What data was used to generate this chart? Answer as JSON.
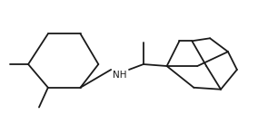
{
  "background": "#ffffff",
  "line_color": "#1a1a1a",
  "line_width": 1.3,
  "nh_label": "NH",
  "nh_fontsize": 7.5,
  "fig_width": 2.84,
  "fig_height": 1.47,
  "dpi": 100,
  "xlim": [
    0.0,
    2.84
  ],
  "ylim": [
    0.0,
    1.47
  ]
}
